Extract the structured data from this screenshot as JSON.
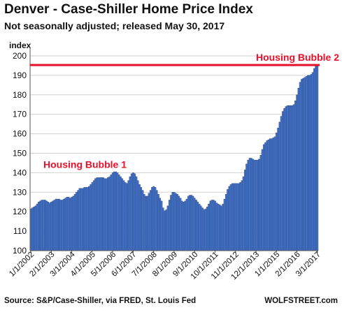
{
  "header": {
    "title": "Denver  - Case-Shiller Home Price Index",
    "subtitle": "Not seasonally adjusted; released May 30, 2017"
  },
  "footer": {
    "source": "Source: S&P/Case-Shiller, via FRED,  St. Louis Fed",
    "brand": "WOLFSTREET.com"
  },
  "colors": {
    "bar": "#4472c4",
    "bar_edge": "#1f3a7a",
    "reference_line": "#e8102a",
    "annotation": "#e8102a",
    "grid": "#d0d0d0",
    "axis_text": "#111111"
  },
  "chart_data": {
    "type": "bar",
    "ylabel": "index",
    "ylim": [
      100,
      200
    ],
    "y_ticks": [
      100,
      110,
      120,
      130,
      140,
      150,
      160,
      170,
      180,
      190,
      200
    ],
    "grid": true,
    "x_start": "2002-01",
    "x_end": "2017-03",
    "x_ticks": [
      "1/1/2002",
      "2/1/2003",
      "3/1/2004",
      "4/1/2005",
      "5/1/2006",
      "6/1/2007",
      "7/1/2008",
      "8/1/2009",
      "9/1/2010",
      "10/1/2011",
      "11/1/2012",
      "12/1/2013",
      "1/1/2015",
      "2/1/2016",
      "3/1/2017"
    ],
    "reference_line": {
      "value": 195.3,
      "label": "Housing Bubble 2"
    },
    "annotations": [
      {
        "text": "Housing Bubble 1"
      }
    ],
    "values": [
      121.5,
      122,
      122.5,
      123,
      124,
      125,
      125.5,
      126,
      126,
      126,
      125.5,
      125,
      124.5,
      125,
      125.5,
      126,
      126.5,
      126.5,
      126.5,
      126,
      126,
      126.5,
      127,
      127.5,
      127.5,
      127,
      127.5,
      128,
      129,
      130,
      131,
      132,
      132,
      132,
      132.5,
      132.5,
      132.5,
      133,
      134,
      135,
      136,
      137,
      137.5,
      137.5,
      137.5,
      137.5,
      137.5,
      137,
      137,
      137.5,
      138,
      139,
      140,
      140.5,
      140.5,
      140,
      139,
      138,
      137,
      136,
      135,
      134.5,
      136,
      138,
      139.5,
      140,
      139.5,
      138,
      136,
      134,
      132.5,
      131,
      129,
      128,
      128,
      129.5,
      131,
      132.5,
      133,
      132.5,
      131,
      129,
      127,
      125.5,
      122,
      120.5,
      121,
      123,
      126,
      128.5,
      130,
      130,
      129.5,
      129,
      128,
      127,
      125.5,
      125,
      125.5,
      126.5,
      128,
      128.5,
      128.5,
      128,
      127,
      126,
      125,
      124,
      123,
      122,
      121,
      121.5,
      122.5,
      124,
      125.5,
      126,
      126,
      125.5,
      124.5,
      124,
      123.5,
      123,
      124,
      126.5,
      129,
      131.5,
      133,
      134,
      134.5,
      134.5,
      134.5,
      134.5,
      134.5,
      135,
      136,
      138,
      141.5,
      144.5,
      146.5,
      147.5,
      147.5,
      147,
      146.5,
      146.5,
      146.5,
      147,
      149,
      152,
      154.5,
      155.5,
      156.5,
      157,
      157.5,
      157.5,
      158,
      158.5,
      160.5,
      163,
      166,
      169,
      171.5,
      173,
      174,
      174.5,
      174.5,
      174.5,
      174.5,
      175,
      177,
      180,
      183.5,
      186.5,
      188,
      188.5,
      189,
      189.5,
      190,
      190,
      190.5,
      191.5,
      193.5,
      195.5,
      195.3
    ]
  }
}
